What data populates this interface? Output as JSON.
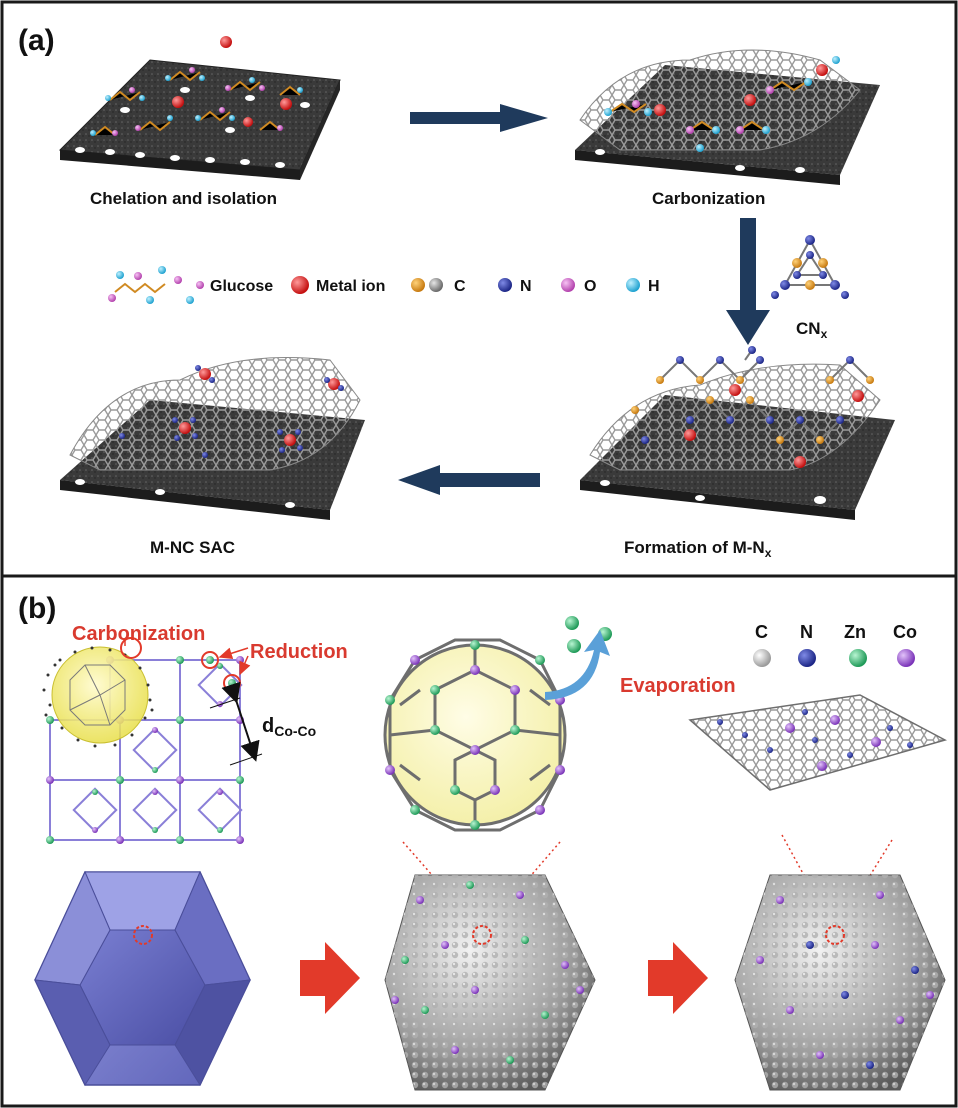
{
  "panel_a": {
    "tag": "(a)",
    "steps": {
      "chelation": "Chelation and isolation",
      "carbonization": "Carbonization",
      "formation_prefix": "Formation of M-N",
      "formation_sub": "x",
      "sac": "M-NC SAC"
    },
    "cnx_main": "CN",
    "cnx_sub": "x",
    "legend": {
      "glucose": "Glucose",
      "metal": "Metal ion",
      "c": "C",
      "n": "N",
      "o": "O",
      "h": "H"
    }
  },
  "panel_b": {
    "tag": "(b)",
    "carbonization": "Carbonization",
    "reduction": "Reduction",
    "evaporation": "Evaporation",
    "distance_main": "d",
    "distance_sub": "Co-Co",
    "legend": {
      "c": "C",
      "n": "N",
      "zn": "Zn",
      "co": "Co"
    }
  },
  "colors": {
    "frame": "#1a1a1a",
    "arrow_dark": "#1f3a5c",
    "arrow_red": "#e23a2a",
    "label_red": "#d93a2f",
    "metal_red": "#e01e1e",
    "carbon_orange": "#e89a24",
    "carbon_gray": "#8c8c8c",
    "nitrogen_blue": "#2a3aa8",
    "oxygen_pink": "#d466d0",
    "hydrogen_cyan": "#4ec9ec",
    "zn_green": "#3fc07a",
    "co_purple": "#9a55d0",
    "polyhedron_blue": "#6f73c8"
  }
}
